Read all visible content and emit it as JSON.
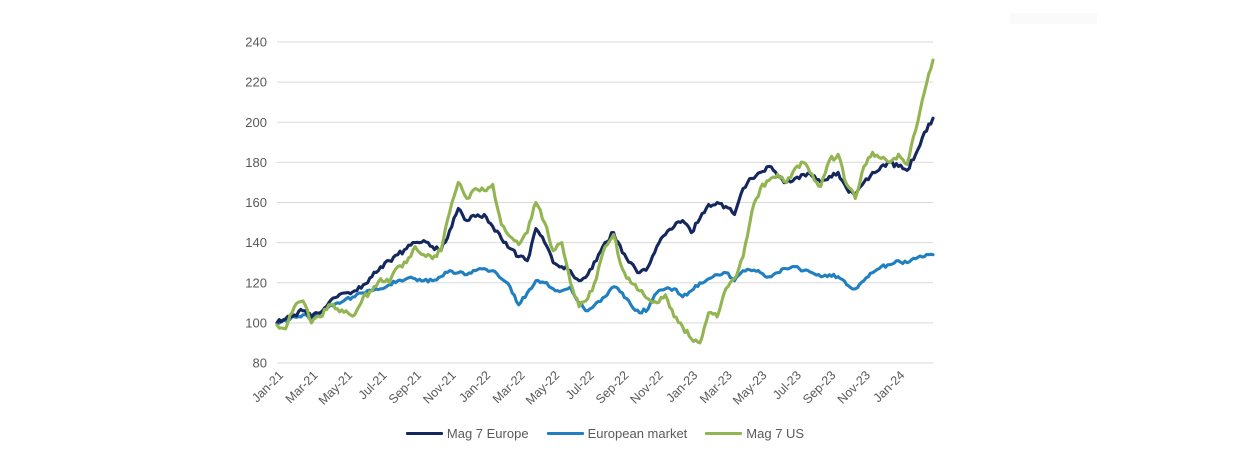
{
  "chart_data": {
    "type": "line",
    "title": "",
    "xlabel": "",
    "ylabel": "",
    "ylim": [
      80,
      240
    ],
    "y_ticks": [
      80,
      100,
      120,
      140,
      160,
      180,
      200,
      220,
      240
    ],
    "x_ticks": [
      "Jan-21",
      "Mar-21",
      "May-21",
      "Jul-21",
      "Sep-21",
      "Nov-21",
      "Jan-22",
      "Mar-22",
      "May-22",
      "Jul-22",
      "Sep-22",
      "Nov-22",
      "Jan-23",
      "Mar-23",
      "May-23",
      "Jul-23",
      "Sep-23",
      "Nov-23",
      "Jan-24"
    ],
    "tick_interval_months": 2,
    "samples_per_month": 2,
    "sampling": "semi-monthly index values from Jan-21 to late Feb-24 (indexed, Jan-21 = 100)",
    "grid": "horizontal",
    "legend_position": "bottom-center",
    "axis_text_color": "#595959",
    "gridline_color": "#d9d9d9",
    "series": [
      {
        "name": "Mag 7 Europe",
        "color": "#14285e",
        "values": [
          100,
          102,
          104,
          106,
          103,
          105,
          110,
          113,
          115,
          116,
          119,
          123,
          128,
          131,
          134,
          137,
          140,
          141,
          138,
          136,
          146,
          157,
          151,
          153,
          154,
          148,
          142,
          137,
          133,
          131,
          147,
          140,
          130,
          128,
          126,
          121,
          124,
          131,
          140,
          145,
          135,
          130,
          125,
          128,
          138,
          144,
          148,
          151,
          145,
          152,
          159,
          160,
          158,
          154,
          167,
          172,
          175,
          178,
          173,
          170,
          172,
          174,
          173,
          170,
          173,
          175,
          167,
          164,
          170,
          175,
          178,
          180,
          178,
          176,
          184,
          195,
          202
        ]
      },
      {
        "name": "European market",
        "color": "#1f7fc0",
        "values": [
          100,
          101,
          103,
          104,
          102,
          105,
          108,
          110,
          112,
          113,
          115,
          116,
          117,
          119,
          121,
          122,
          122,
          121,
          121,
          123,
          126,
          125,
          124,
          126,
          127,
          126,
          122,
          118,
          109,
          115,
          121,
          120,
          117,
          116,
          118,
          110,
          106,
          110,
          113,
          118,
          115,
          109,
          105,
          107,
          115,
          117,
          117,
          113,
          116,
          120,
          122,
          124,
          125,
          121,
          126,
          126,
          125,
          123,
          125,
          127,
          128,
          126,
          125,
          123,
          124,
          123,
          119,
          117,
          121,
          125,
          128,
          129,
          131,
          130,
          132,
          133,
          134
        ]
      },
      {
        "name": "Mag 7 US",
        "color": "#92b551",
        "values": [
          99,
          97,
          108,
          111,
          100,
          103,
          109,
          107,
          106,
          104,
          113,
          116,
          122,
          120,
          128,
          130,
          138,
          134,
          132,
          136,
          155,
          170,
          162,
          167,
          166,
          169,
          149,
          143,
          139,
          145,
          160,
          150,
          136,
          140,
          120,
          108,
          112,
          122,
          138,
          144,
          127,
          120,
          116,
          112,
          110,
          114,
          103,
          98,
          92,
          90,
          105,
          103,
          117,
          122,
          133,
          155,
          167,
          171,
          174,
          170,
          177,
          180,
          174,
          168,
          181,
          184,
          169,
          162,
          178,
          185,
          182,
          180,
          184,
          179,
          196,
          215,
          231
        ]
      }
    ]
  },
  "legend": {
    "item1": "Mag 7 Europe",
    "item2": "European market",
    "item3": "Mag 7 US"
  },
  "watermark_text": ""
}
